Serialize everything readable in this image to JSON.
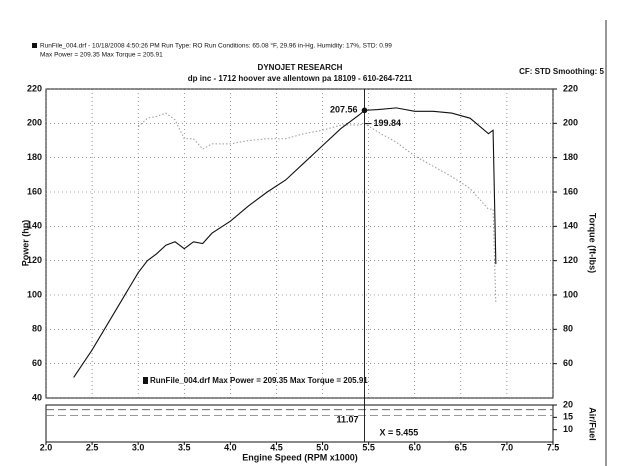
{
  "chart_data": {
    "type": "line",
    "header": "RunFile_004.drf - 10/18/2008 4:50:26 PM  Run Type: RO  Run Conditions: 65.08 °F, 29.96 in-Hg.  Humidity:  17%, STD: 0.99",
    "header2": "Max Power = 209.35  Max Torque = 205.91",
    "title": "DYNOJET RESEARCH",
    "subtitle": "dp inc - 1712 hoover ave allentown pa 18109 - 610-264-7211",
    "settings_label": "CF: STD  Smoothing: 5",
    "xlabel": "Engine Speed (RPM x1000)",
    "ylabel": "Power (hp)",
    "y2label": "Torque (ft-lbs)",
    "afr_label": "Air/Fuel",
    "legend_label": "RunFile_004.drf Max Power = 209.35    Max Torque = 205.91",
    "x": [
      2.3,
      2.5,
      2.7,
      2.9,
      3.0,
      3.1,
      3.2,
      3.3,
      3.4,
      3.5,
      3.6,
      3.7,
      3.8,
      4.0,
      4.2,
      4.4,
      4.6,
      4.8,
      5.0,
      5.2,
      5.4,
      5.455,
      5.6,
      5.8,
      6.0,
      6.2,
      6.4,
      6.6,
      6.8,
      6.85,
      6.88
    ],
    "series": [
      {
        "color": "#111111",
        "style": "solid",
        "axis": "y",
        "values": [
          52,
          68,
          86,
          104,
          113,
          120,
          124,
          129,
          131,
          127,
          131,
          130,
          136,
          143,
          152,
          160,
          167,
          177,
          187,
          197,
          205,
          207.56,
          208,
          209,
          207,
          207,
          206,
          203,
          194,
          196,
          118
        ]
      },
      {
        "color": "#9a9a9a",
        "style": "dotted",
        "axis": "y2",
        "values": [
          null,
          null,
          null,
          null,
          198,
          203,
          204,
          206,
          202,
          191,
          191,
          185,
          188,
          188,
          190,
          191,
          191,
          194,
          196,
          199,
          199,
          199.84,
          195,
          189,
          181,
          175,
          169,
          162,
          150,
          150,
          95
        ]
      }
    ],
    "afr_series": [
      {
        "color": "#555555",
        "x": [
          2.0,
          7.5
        ],
        "values": [
          18.1,
          18.1
        ]
      },
      {
        "color": "#777777",
        "x": [
          2.0,
          7.5
        ],
        "values": [
          15.7,
          15.7
        ]
      }
    ],
    "cursor": {
      "x": 5.455,
      "hp": 207.56,
      "torque": 199.84,
      "afr": 11.07,
      "label": "X = 5.455"
    },
    "xlim": [
      2.0,
      7.5
    ],
    "xticks": [
      {
        "value": 2,
        "label": "2.0"
      },
      2.5,
      {
        "value": 3,
        "label": "3.0"
      },
      3.5,
      {
        "value": 4,
        "label": "4.0"
      },
      4.5,
      {
        "value": 5,
        "label": "5.0"
      },
      5.5,
      {
        "value": 6,
        "label": "6.0"
      },
      6.5,
      {
        "value": 7,
        "label": "7.0"
      },
      7.5
    ],
    "ylim": [
      40,
      220
    ],
    "yticks": [
      40,
      60,
      80,
      100,
      120,
      140,
      160,
      180,
      200,
      220
    ],
    "y2lim": [
      40,
      220
    ],
    "y2ticks": [
      60,
      80,
      100,
      120,
      140,
      160,
      180,
      200,
      220
    ],
    "afrlim": [
      5,
      20
    ],
    "afrticks": [
      10,
      15,
      20
    ],
    "grid": true
  }
}
